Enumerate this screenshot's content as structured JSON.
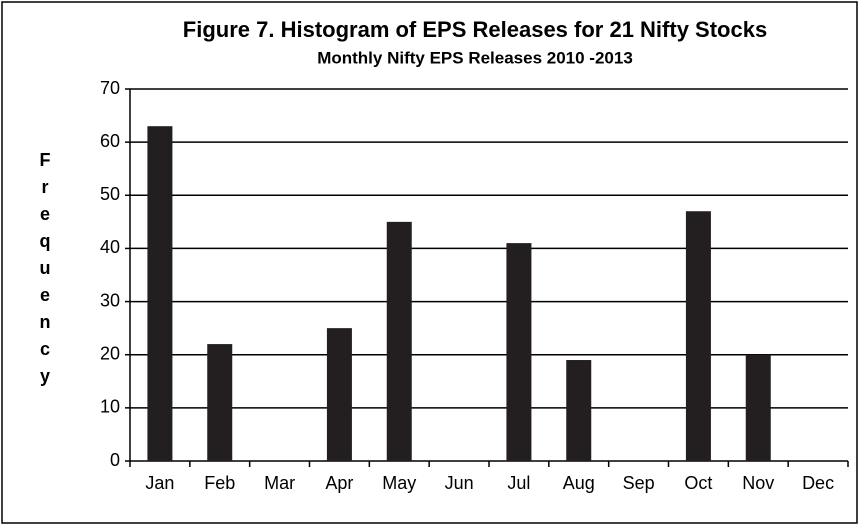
{
  "chart_data": {
    "type": "bar",
    "title": "Figure 7. Histogram of EPS Releases for 21 Nifty Stocks",
    "subtitle": "Monthly Nifty EPS Releases 2010 -2013",
    "y_label": "Frequency",
    "categories": [
      "Jan",
      "Feb",
      "Mar",
      "Apr",
      "May",
      "Jun",
      "Jul",
      "Aug",
      "Sep",
      "Oct",
      "Nov",
      "Dec"
    ],
    "values": [
      63,
      22,
      0,
      25,
      45,
      0,
      41,
      19,
      0,
      47,
      20,
      0
    ],
    "color": "#231f20",
    "ylim": [
      0,
      70
    ],
    "yticks": [
      0,
      10,
      20,
      30,
      40,
      50,
      60,
      70
    ],
    "grid": true
  }
}
